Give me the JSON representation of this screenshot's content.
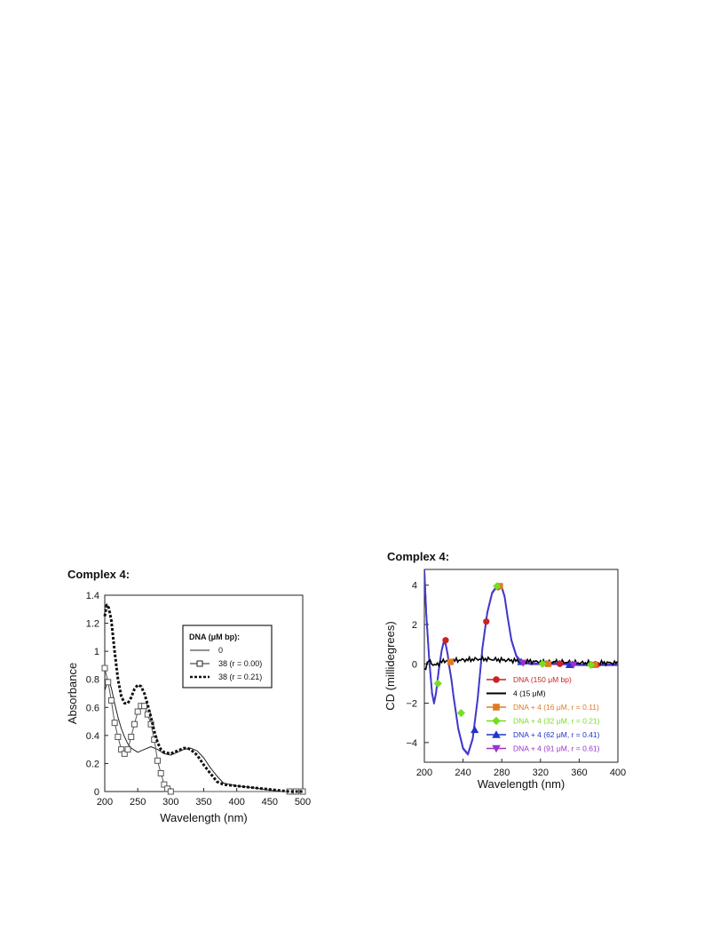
{
  "chart_data": [
    {
      "type": "line",
      "title": "Complex 4:",
      "xlabel": "Wavelength (nm)",
      "ylabel": "Absorbance",
      "xlim": [
        200,
        500
      ],
      "ylim": [
        0,
        1.4
      ],
      "x_ticks": [
        "200",
        "250",
        "300",
        "350",
        "400",
        "450",
        "500"
      ],
      "y_ticks": [
        "0",
        "0.2",
        "0.4",
        "0.6",
        "0.8",
        "1",
        "1.2",
        "1.4"
      ],
      "legend": {
        "position": "top-right",
        "title": "DNA (μM bp):",
        "entries": [
          "0",
          "38 (r = 0.00)",
          "38 (r = 0.21)"
        ]
      },
      "series": [
        {
          "label": "0",
          "style": "solid",
          "color": "#222222",
          "x": [
            200,
            205,
            210,
            215,
            220,
            225,
            230,
            235,
            240,
            250,
            260,
            270,
            280,
            290,
            300,
            310,
            320,
            330,
            340,
            350,
            360,
            370,
            380,
            400,
            420,
            450,
            470,
            500
          ],
          "y": [
            0.72,
            0.8,
            0.74,
            0.63,
            0.53,
            0.45,
            0.39,
            0.34,
            0.31,
            0.28,
            0.3,
            0.32,
            0.3,
            0.27,
            0.26,
            0.28,
            0.3,
            0.31,
            0.29,
            0.24,
            0.17,
            0.11,
            0.06,
            0.04,
            0.03,
            0.01,
            0.0,
            0.0
          ]
        },
        {
          "label": "38 (r = 0.00)",
          "style": "solid-square",
          "color": "#555555",
          "x": [
            200,
            205,
            210,
            215,
            220,
            225,
            230,
            235,
            240,
            245,
            250,
            255,
            260,
            265,
            270,
            275,
            280,
            285,
            290,
            295,
            300,
            480,
            490,
            500
          ],
          "y": [
            0.88,
            0.78,
            0.65,
            0.49,
            0.39,
            0.3,
            0.27,
            0.3,
            0.39,
            0.48,
            0.57,
            0.61,
            0.61,
            0.55,
            0.48,
            0.37,
            0.22,
            0.13,
            0.05,
            0.02,
            0.0,
            0.0,
            0.0,
            0.0
          ]
        },
        {
          "label": "38 (r = 0.21)",
          "style": "dotted",
          "color": "#111111",
          "x": [
            200,
            203,
            206,
            210,
            215,
            220,
            225,
            230,
            235,
            240,
            245,
            250,
            255,
            260,
            265,
            270,
            275,
            280,
            285,
            290,
            300,
            310,
            320,
            325,
            330,
            340,
            350,
            360,
            370,
            380,
            400,
            420,
            440,
            460,
            480,
            500
          ],
          "y": [
            1.25,
            1.33,
            1.31,
            1.22,
            1.0,
            0.8,
            0.68,
            0.63,
            0.63,
            0.67,
            0.73,
            0.76,
            0.75,
            0.7,
            0.62,
            0.53,
            0.43,
            0.35,
            0.3,
            0.28,
            0.27,
            0.29,
            0.31,
            0.31,
            0.3,
            0.26,
            0.19,
            0.13,
            0.07,
            0.05,
            0.04,
            0.03,
            0.02,
            0.01,
            0.0,
            0.0
          ]
        }
      ]
    },
    {
      "type": "line",
      "title": "Complex 4:",
      "xlabel": "Wavelength (nm)",
      "ylabel": "CD (millidegrees)",
      "xlim": [
        200,
        400
      ],
      "ylim": [
        -5,
        4.8
      ],
      "x_ticks": [
        "200",
        "240",
        "280",
        "320",
        "360",
        "400"
      ],
      "y_ticks": [
        "4",
        "2",
        "0",
        "−2",
        "−4"
      ],
      "legend": {
        "position": "bottom-right",
        "entries": [
          {
            "text": "DNA (150 μM bp)",
            "color": "#cc2222",
            "marker": "circle"
          },
          {
            "text": "4 (15 μM)",
            "color": "#000000",
            "marker": "none",
            "bold_prefix": "4"
          },
          {
            "text": "DNA + 4 (16 μM, r = 0.11)",
            "color": "#e07a22",
            "marker": "square"
          },
          {
            "text": "DNA + 4 (32 μM, r = 0.21)",
            "color": "#77dd22",
            "marker": "diamond"
          },
          {
            "text": "DNA + 4 (62 μM, r = 0.41)",
            "color": "#2233cc",
            "marker": "triangle-up"
          },
          {
            "text": "DNA + 4 (91 μM, r = 0.61)",
            "color": "#9933cc",
            "marker": "triangle-down"
          }
        ]
      },
      "series": [
        {
          "label": "DNA + 4 traces",
          "color": "#5a4bd1",
          "x": [
            200,
            202,
            205,
            208,
            210,
            212,
            215,
            218,
            220,
            222,
            224,
            226,
            228,
            230,
            235,
            240,
            245,
            250,
            255,
            260,
            265,
            270,
            275,
            278,
            280,
            283,
            286,
            290,
            295,
            300,
            305,
            310,
            320,
            340,
            360,
            380,
            400
          ],
          "y": [
            4.8,
            2.5,
            0.2,
            -1.5,
            -2.0,
            -1.5,
            -0.3,
            0.7,
            1.1,
            1.0,
            0.5,
            -0.2,
            -0.8,
            -1.6,
            -3.3,
            -4.3,
            -4.6,
            -3.8,
            -1.8,
            0.8,
            2.6,
            3.6,
            3.95,
            4.0,
            3.9,
            3.4,
            2.4,
            1.2,
            0.4,
            0.1,
            0.05,
            0.0,
            0.0,
            0.0,
            -0.05,
            -0.05,
            -0.05
          ]
        },
        {
          "label": "4 (15 μM)",
          "color": "#000000",
          "x": [
            200,
            205,
            210,
            220,
            240,
            260,
            280,
            300,
            320,
            340,
            360,
            380,
            400
          ],
          "y": [
            -0.3,
            0.2,
            -0.1,
            0.15,
            0.2,
            0.25,
            0.2,
            0.15,
            0.1,
            0.1,
            0.05,
            0.05,
            0.05
          ]
        }
      ],
      "markers": [
        {
          "series": "DNA (150 μM bp)",
          "color": "#cc2222",
          "shape": "circle",
          "x": [
            222,
            264,
            276,
            340,
            378
          ],
          "y": [
            1.2,
            2.15,
            3.9,
            0.0,
            -0.05
          ]
        },
        {
          "series": "DNA + 4 (16 μM, r = 0.11)",
          "color": "#e07a22",
          "shape": "square",
          "x": [
            227,
            278,
            328,
            376
          ],
          "y": [
            0.1,
            3.95,
            0.0,
            -0.05
          ]
        },
        {
          "series": "DNA + 4 (32 μM, r = 0.21)",
          "color": "#77dd22",
          "shape": "diamond",
          "x": [
            214,
            238,
            275,
            322,
            372
          ],
          "y": [
            -1.0,
            -2.5,
            3.95,
            0.0,
            -0.05
          ]
        },
        {
          "series": "DNA + 4 (62 μM, r = 0.41)",
          "color": "#2233cc",
          "shape": "triangle-up",
          "x": [
            252,
            300,
            350
          ],
          "y": [
            -3.35,
            0.1,
            -0.05
          ]
        },
        {
          "series": "DNA + 4 (91 μM, r = 0.61)",
          "color": "#9933cc",
          "shape": "triangle-down",
          "x": [
            302,
            354
          ],
          "y": [
            0.05,
            -0.05
          ]
        }
      ]
    }
  ]
}
